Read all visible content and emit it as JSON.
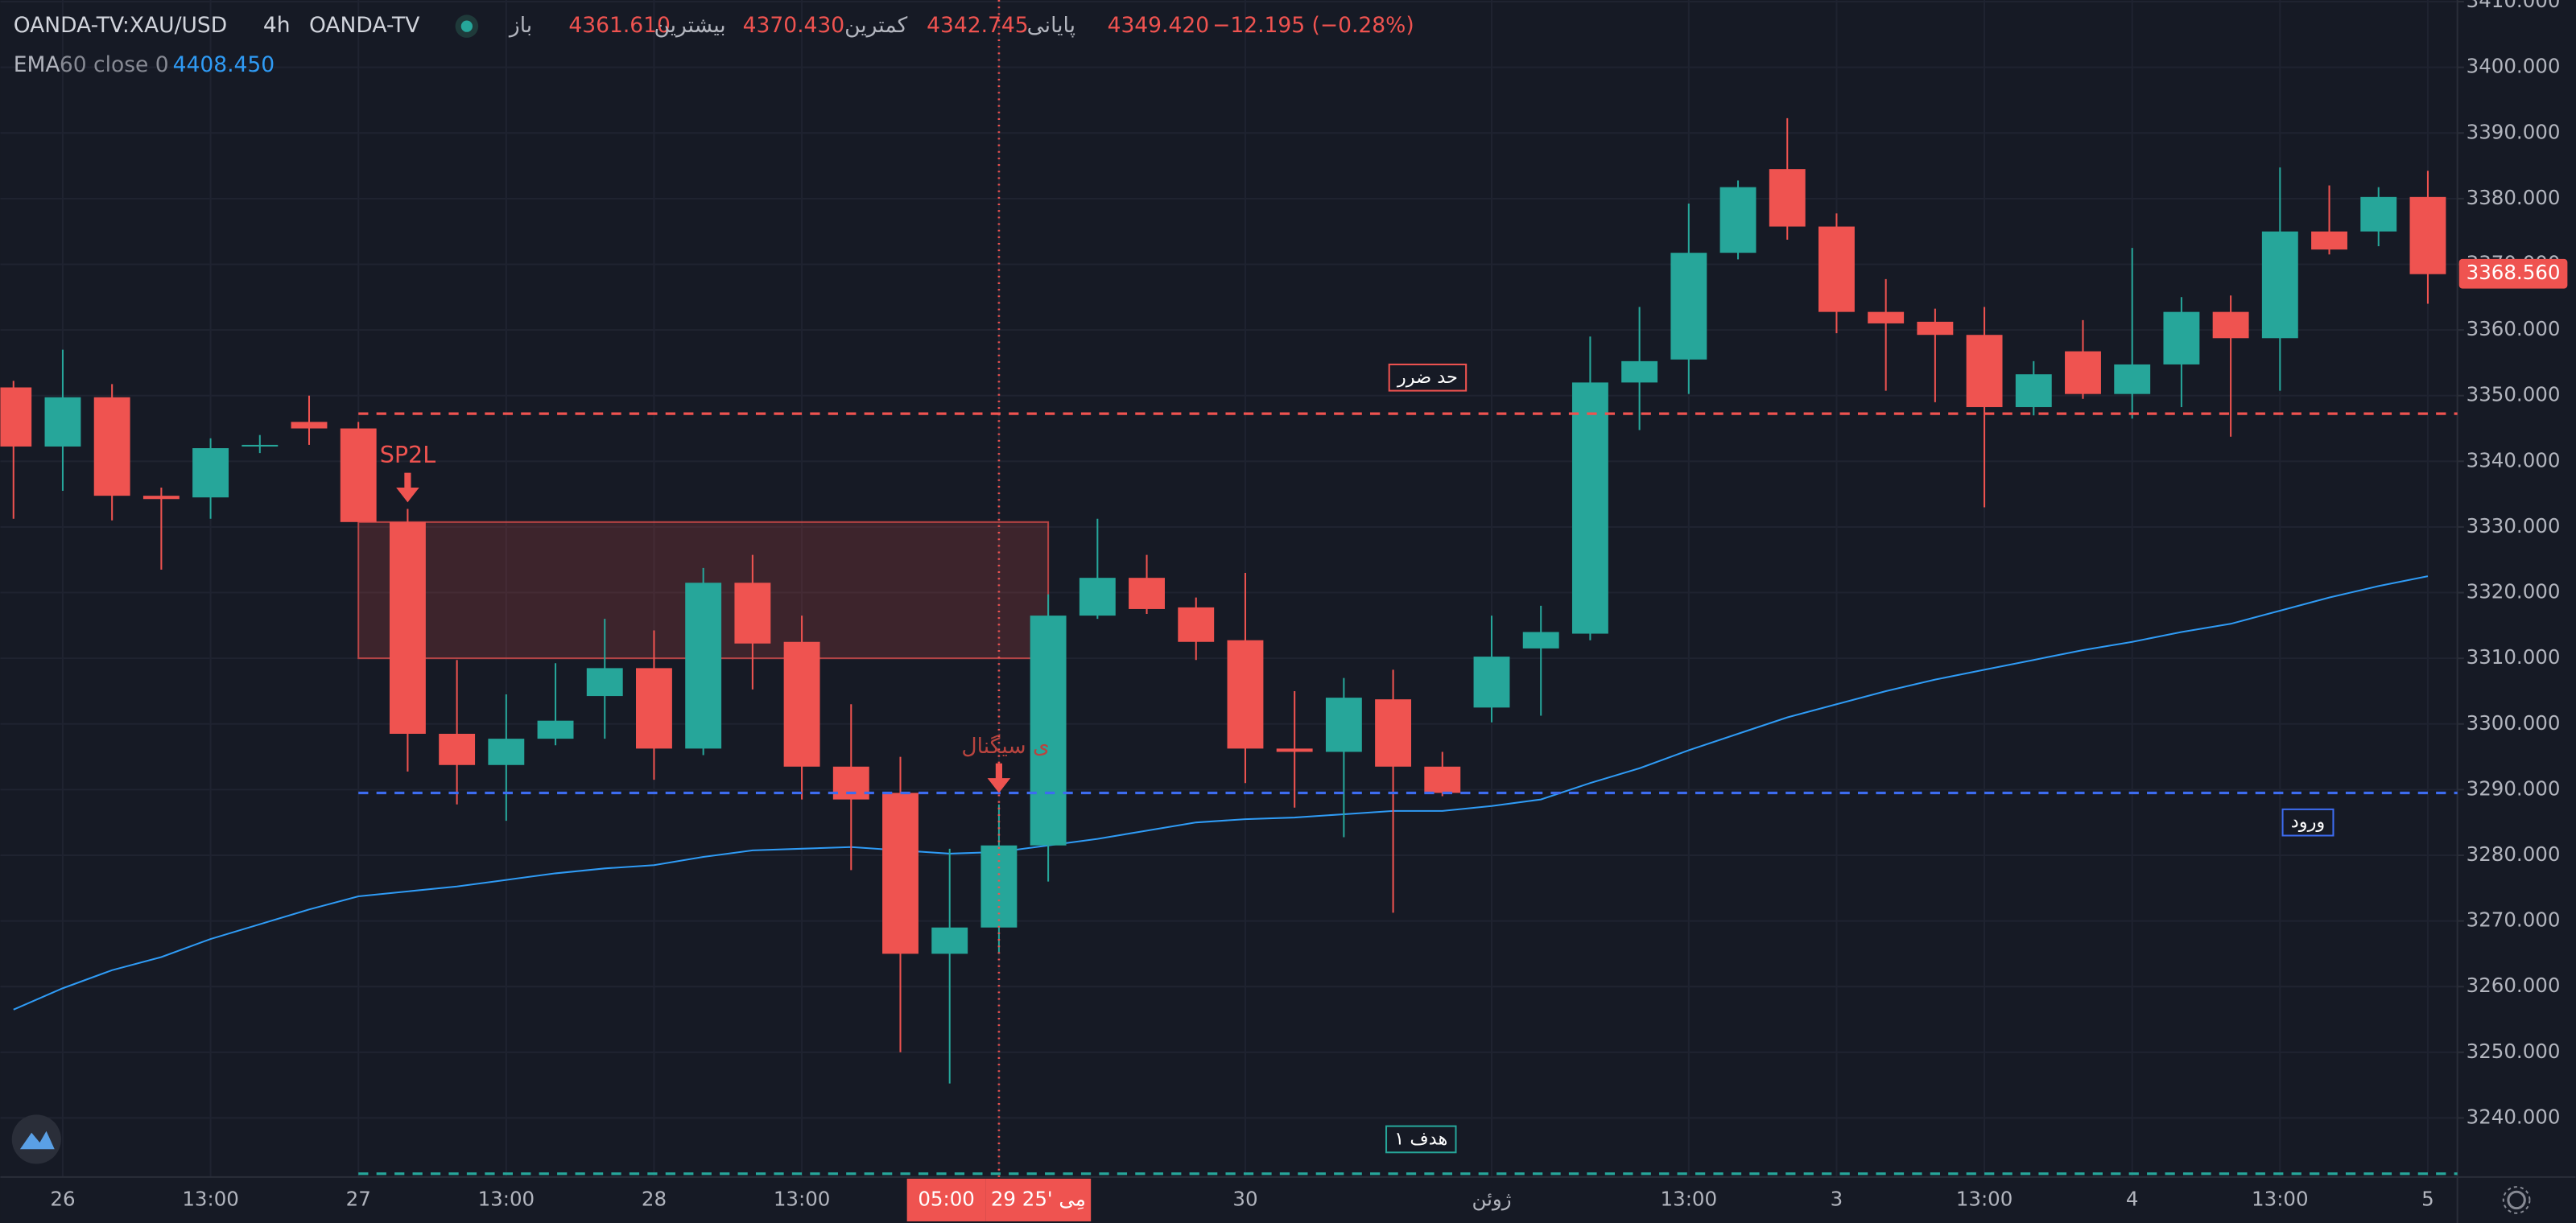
{
  "header": {
    "symbol": "OANDA-TV:XAU/USD",
    "interval": "4h",
    "source": "OANDA-TV",
    "open_label": "باز",
    "open": "4361.610",
    "high_label": "بیشترین",
    "high": "4370.430",
    "low_label": "کمترین",
    "low": "4342.745",
    "close_label": "پایانی",
    "close": "4349.420",
    "change": "−12.195 (−0.28%)"
  },
  "chart_data": {
    "type": "candlestick",
    "categories": [
      null,
      "26",
      null,
      null,
      "13:00",
      null,
      null,
      "27",
      null,
      null,
      "13:00",
      null,
      null,
      "28",
      null,
      null,
      "13:00",
      null,
      null,
      null,
      "29 مِی '25",
      null,
      null,
      null,
      null,
      "30",
      null,
      null,
      null,
      null,
      "ژوئن",
      null,
      null,
      null,
      "13:00",
      null,
      null,
      "3",
      null,
      null,
      "13:00",
      null,
      null,
      "4",
      null,
      null,
      "13:00",
      null,
      null,
      "5"
    ],
    "open": [
      3351.25,
      3342.25,
      3349.75,
      3334.75,
      3334.5,
      3342.25,
      3346,
      3345,
      3330.75,
      3298.5,
      3293.75,
      3297.75,
      3304.25,
      3308.5,
      3296.25,
      3321.5,
      3312.5,
      3293.5,
      3289.5,
      3265,
      3269,
      3281.5,
      3316.5,
      3322.25,
      3317.75,
      3312.75,
      3296.25,
      3295.75,
      3303.75,
      3293.5,
      3302.5,
      3311.5,
      3313.75,
      3352,
      3355.5,
      3371.75,
      3384.5,
      3375.75,
      3362.75,
      3361.25,
      3359.25,
      3348.25,
      3356.75,
      3350.25,
      3354.75,
      3362.75,
      3358.75,
      3375,
      3375,
      3380.25
    ],
    "high": [
      3352.25,
      3357,
      3351.75,
      3336,
      3343.5,
      3344,
      3350,
      3346,
      3332.75,
      3309.75,
      3304.5,
      3309.25,
      3316,
      3314.25,
      3323.75,
      3325.75,
      3316.5,
      3303,
      3295,
      3281,
      3287.75,
      3319.75,
      3331.25,
      3325.75,
      3319.25,
      3323,
      3305,
      3307,
      3308.25,
      3295.75,
      3316.5,
      3318,
      3359,
      3363.5,
      3379.25,
      3382.75,
      3392.25,
      3377.75,
      3367.75,
      3363.25,
      3363.5,
      3355.25,
      3361.5,
      3372.5,
      3365,
      3365.25,
      3384.75,
      3382,
      3381.75,
      3384.25
    ],
    "low": [
      3331.25,
      3335.5,
      3331,
      3323.5,
      3331.25,
      3341.25,
      3342.5,
      3330.75,
      3292.75,
      3287.75,
      3285.25,
      3296.75,
      3297.75,
      3291.5,
      3295.25,
      3305.25,
      3288.5,
      3277.75,
      3250,
      3245.25,
      3265.25,
      3276,
      3316,
      3316.75,
      3309.75,
      3291,
      3287.25,
      3282.75,
      3271.25,
      3289,
      3300.25,
      3301.25,
      3312.75,
      3344.75,
      3350.25,
      3370.75,
      3373.75,
      3359.5,
      3350.75,
      3349,
      3333,
      3347,
      3349.5,
      3346.5,
      3348.25,
      3343.75,
      3350.75,
      3371.5,
      3372.75,
      3364
    ],
    "close": [
      3342.25,
      3349.75,
      3334.75,
      3334.25,
      3342,
      3342.5,
      3345,
      3330.75,
      3298.5,
      3293.75,
      3297.75,
      3300.5,
      3308.5,
      3296.25,
      3321.5,
      3312.25,
      3293.5,
      3288.5,
      3265,
      3269,
      3281.5,
      3316.5,
      3322.25,
      3317.5,
      3312.5,
      3296.25,
      3295.75,
      3304,
      3293.5,
      3289.5,
      3310.25,
      3314,
      3352,
      3355.25,
      3371.75,
      3381.75,
      3375.75,
      3362.75,
      3361,
      3359.25,
      3348.25,
      3353.25,
      3350.25,
      3354.75,
      3362.75,
      3358.75,
      3375,
      3372.25,
      3380.25,
      3368.5
    ],
    "up_color": "#26a69a",
    "down_color": "#ef5350",
    "ema": {
      "label": "EMA",
      "params": "60 close 0",
      "last": "4408.450",
      "color": "#2f9bf5",
      "values": [
        3256.5,
        3259.75,
        3262.5,
        3264.5,
        3267.25,
        3269.5,
        3271.75,
        3273.75,
        3274.5,
        3275.25,
        3276.25,
        3277.25,
        3278,
        3278.5,
        3279.75,
        3280.75,
        3281,
        3281.25,
        3280.75,
        3280.25,
        3280.5,
        3281.5,
        3282.5,
        3283.75,
        3285,
        3285.5,
        3285.75,
        3286.25,
        3286.75,
        3286.75,
        3287.5,
        3288.5,
        3291,
        3293.25,
        3296,
        3298.5,
        3301,
        3303,
        3305,
        3306.75,
        3308.25,
        3309.75,
        3311.25,
        3312.5,
        3314,
        3315.25,
        3317.25,
        3319.25,
        3321,
        3322.5
      ]
    },
    "ylim": [
      3231,
      3410.25
    ],
    "yticks": [
      {
        "value": 3240,
        "label": "3240.000"
      },
      {
        "value": 3250,
        "label": "3250.000"
      },
      {
        "value": 3260,
        "label": "3260.000"
      },
      {
        "value": 3270,
        "label": "3270.000"
      },
      {
        "value": 3280,
        "label": "3280.000"
      },
      {
        "value": 3290,
        "label": "3290.000"
      },
      {
        "value": 3300,
        "label": "3300.000"
      },
      {
        "value": 3310,
        "label": "3310.000"
      },
      {
        "value": 3320,
        "label": "3320.000"
      },
      {
        "value": 3330,
        "label": "3330.000"
      },
      {
        "value": 3340,
        "label": "3340.000"
      },
      {
        "value": 3350,
        "label": "3350.000"
      },
      {
        "value": 3360,
        "label": "3360.000"
      },
      {
        "value": 3370,
        "label": "3370.000"
      },
      {
        "value": 3380,
        "label": "3380.000"
      },
      {
        "value": 3390,
        "label": "3390.000"
      },
      {
        "value": 3400,
        "label": "3400.000"
      },
      {
        "value": 3410,
        "label": "3410.000"
      }
    ],
    "grid": true,
    "levels": [
      {
        "label": "حد ضرر",
        "value": 3347.25,
        "color": "#ef5350"
      },
      {
        "label": "ورود",
        "value": 3289.5,
        "color": "#3d6cf0"
      },
      {
        "label": "هدف ۱",
        "value": 3231.5,
        "color": "#26a69a"
      }
    ],
    "zone": {
      "from": 3310,
      "to": 3330.75,
      "x_start": 7,
      "x_end": 21,
      "color": "#ef5350"
    },
    "annotations": [
      {
        "text": "SP2L",
        "index": 8
      },
      {
        "text": "ی سیگنال",
        "index": 20
      }
    ],
    "crosshair": {
      "index": 20,
      "label": "05:00"
    },
    "last_price": {
      "value": 3368.56,
      "label": "3368.560"
    }
  }
}
